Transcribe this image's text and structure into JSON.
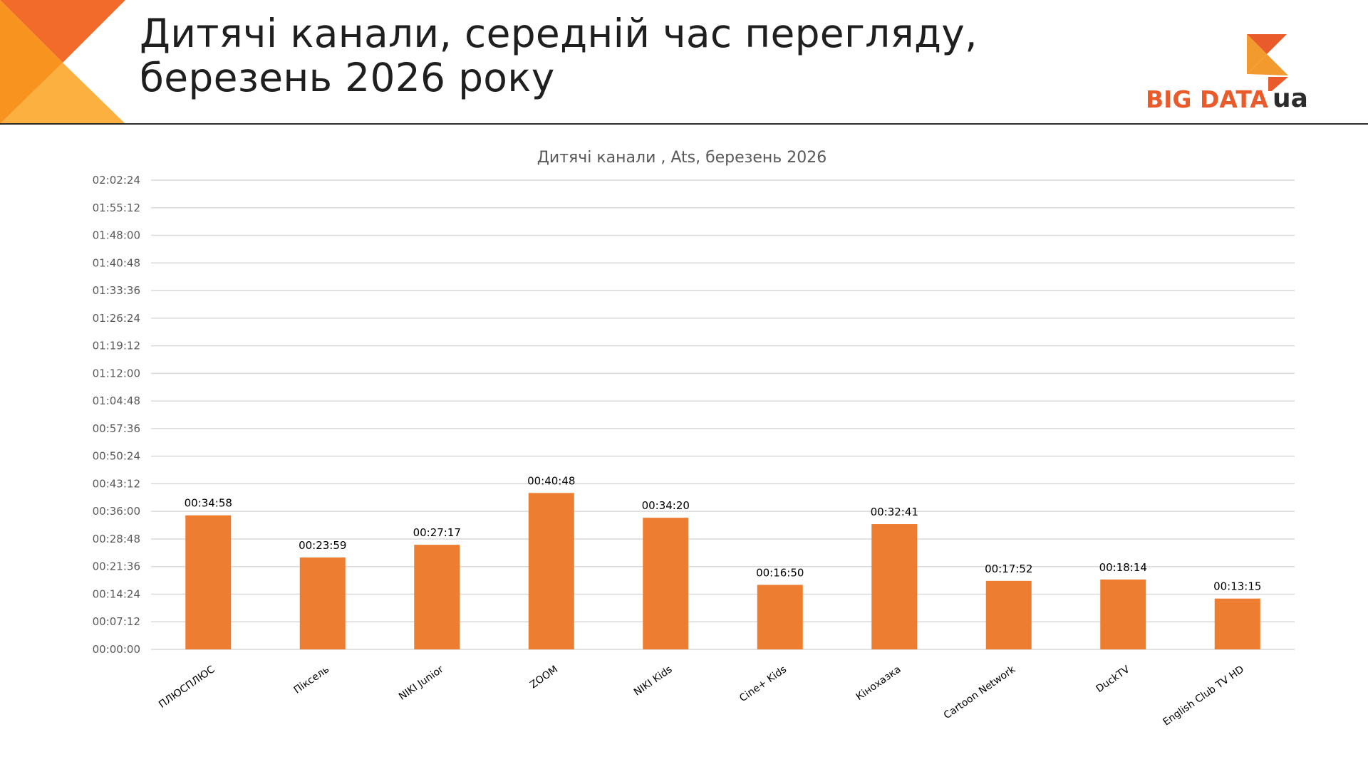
{
  "slide": {
    "title_line1": "Дитячі канали, середній час перегляду,",
    "title_line2": "березень 2026 року"
  },
  "logo": {
    "text": "BIG DATA",
    "suffix": "ua",
    "colors": {
      "red": "#ea5b2b",
      "orange": "#f39a2f",
      "dark": "#2b2b2b"
    }
  },
  "colors": {
    "bar": "#ed7d31",
    "grid": "#d9d9d9",
    "corner_dark": "#f26b2a",
    "corner_mid": "#f7931e",
    "corner_light": "#fbb040",
    "divider": "#2b2b2b"
  },
  "chart_data": {
    "type": "bar",
    "title": "Дитячі канали , Ats, березень 2026",
    "categories": [
      "ПЛЮСПЛЮС",
      "Піксель",
      "NIKI Junior",
      "ZOOM",
      "NIKI Kids",
      "Cine+ Kids",
      "Кінохазка",
      "Cartoon Network",
      "DuckTV",
      "English Club TV HD"
    ],
    "values_seconds": [
      2098,
      1439,
      1637,
      2448,
      2060,
      1010,
      1961,
      1072,
      1094,
      795
    ],
    "data_labels": [
      "00:34:58",
      "00:23:59",
      "00:27:17",
      "00:40:48",
      "00:34:20",
      "00:16:50",
      "00:32:41",
      "00:17:52",
      "00:18:14",
      "00:13:15"
    ],
    "y_ticks": [
      "00:00:00",
      "00:07:12",
      "00:14:24",
      "00:21:36",
      "00:28:48",
      "00:36:00",
      "00:43:12",
      "00:50:24",
      "00:57:36",
      "01:04:48",
      "01:12:00",
      "01:19:12",
      "01:26:24",
      "01:33:36",
      "01:40:48",
      "01:48:00",
      "01:55:12",
      "02:02:24"
    ],
    "ylim_seconds": [
      0,
      7344
    ],
    "y_tick_step_seconds": 432,
    "grid": true,
    "legend": "none",
    "xlabel": "",
    "ylabel": ""
  }
}
